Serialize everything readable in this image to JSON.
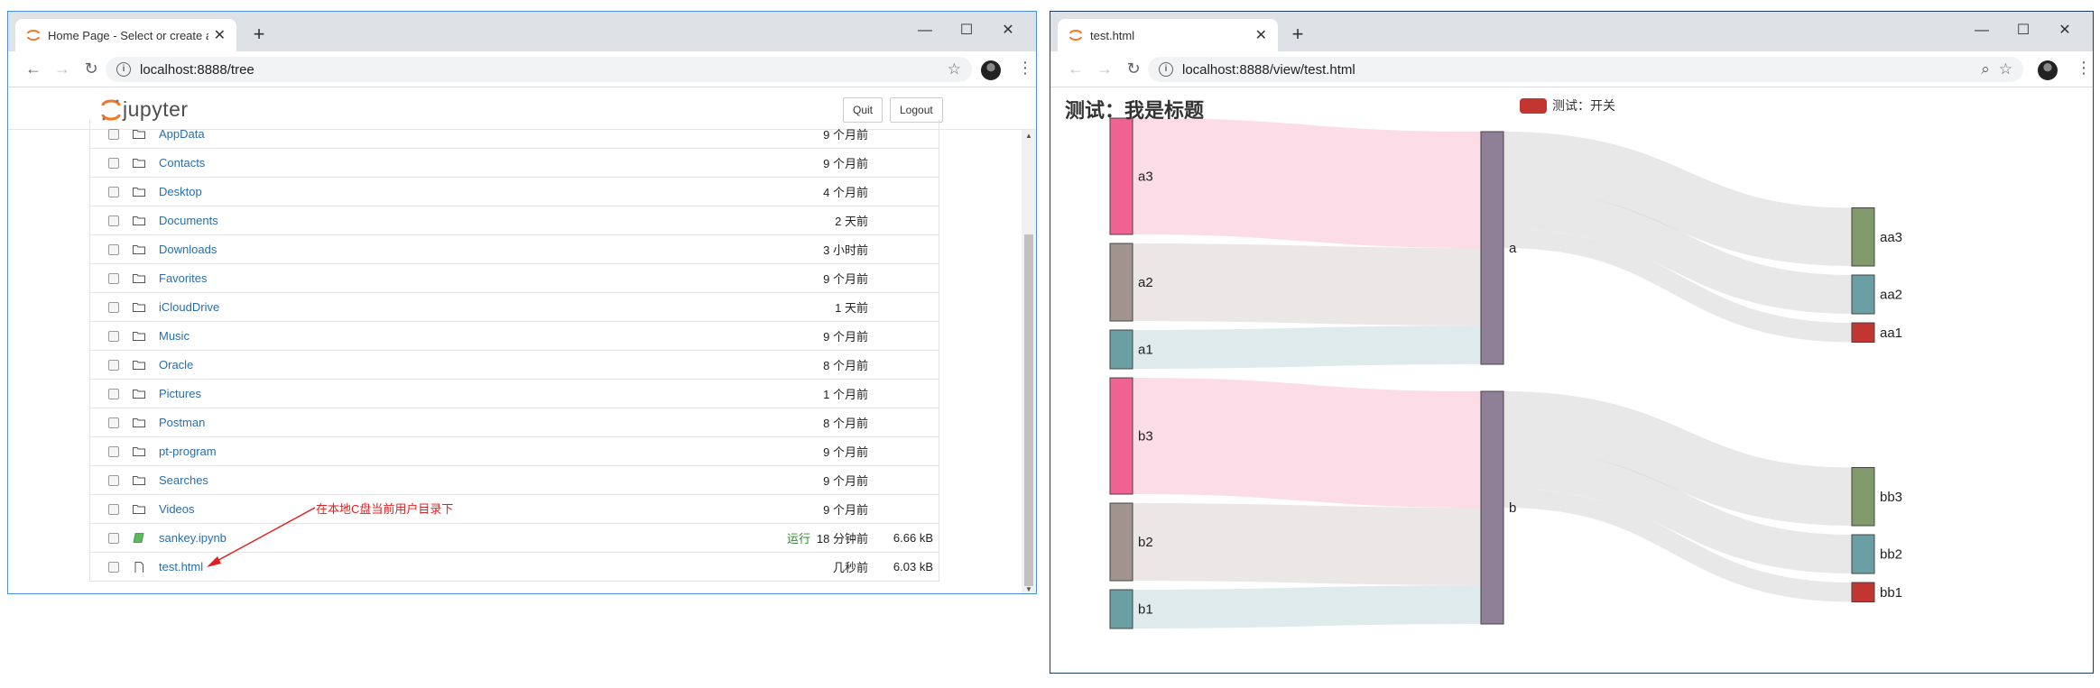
{
  "left_window": {
    "tab_title": "Home Page - Select or create a notebook",
    "url": "localhost:8888/tree",
    "logo_text": "jupyter",
    "quit_label": "Quit",
    "logout_label": "Logout",
    "annotation": "在本地C盘当前用户目录下",
    "files": [
      {
        "name": "AppData",
        "type": "folder",
        "status": "",
        "modified": "9 个月前",
        "size": ""
      },
      {
        "name": "Contacts",
        "type": "folder",
        "status": "",
        "modified": "9 个月前",
        "size": ""
      },
      {
        "name": "Desktop",
        "type": "folder",
        "status": "",
        "modified": "4 个月前",
        "size": ""
      },
      {
        "name": "Documents",
        "type": "folder",
        "status": "",
        "modified": "2 天前",
        "size": ""
      },
      {
        "name": "Downloads",
        "type": "folder",
        "status": "",
        "modified": "3 小时前",
        "size": ""
      },
      {
        "name": "Favorites",
        "type": "folder",
        "status": "",
        "modified": "9 个月前",
        "size": ""
      },
      {
        "name": "iCloudDrive",
        "type": "folder",
        "status": "",
        "modified": "1 天前",
        "size": ""
      },
      {
        "name": "Music",
        "type": "folder",
        "status": "",
        "modified": "9 个月前",
        "size": ""
      },
      {
        "name": "Oracle",
        "type": "folder",
        "status": "",
        "modified": "8 个月前",
        "size": ""
      },
      {
        "name": "Pictures",
        "type": "folder",
        "status": "",
        "modified": "1 个月前",
        "size": ""
      },
      {
        "name": "Postman",
        "type": "folder",
        "status": "",
        "modified": "8 个月前",
        "size": ""
      },
      {
        "name": "pt-program",
        "type": "folder",
        "status": "",
        "modified": "9 个月前",
        "size": ""
      },
      {
        "name": "Searches",
        "type": "folder",
        "status": "",
        "modified": "9 个月前",
        "size": ""
      },
      {
        "name": "Videos",
        "type": "folder",
        "status": "",
        "modified": "9 个月前",
        "size": ""
      },
      {
        "name": "sankey.ipynb",
        "type": "notebook",
        "status": "运行",
        "modified": "18 分钟前",
        "size": "6.66 kB"
      },
      {
        "name": "test.html",
        "type": "file",
        "status": "",
        "modified": "几秒前",
        "size": "6.03 kB"
      }
    ]
  },
  "right_window": {
    "tab_title": "test.html",
    "url": "localhost:8888/view/test.html"
  },
  "chart_data": {
    "type": "sankey",
    "title": "测试：我是标题",
    "legend": [
      {
        "name": "测试：开关",
        "color": "#c23531"
      }
    ],
    "legend_position": "top-center",
    "nodes": [
      {
        "name": "a3",
        "column": 0,
        "color": "#f06292"
      },
      {
        "name": "a2",
        "column": 0,
        "color": "#a1938e"
      },
      {
        "name": "a1",
        "column": 0,
        "color": "#6a9fa4"
      },
      {
        "name": "b3",
        "column": 0,
        "color": "#f06292"
      },
      {
        "name": "b2",
        "column": 0,
        "color": "#a1938e"
      },
      {
        "name": "b1",
        "column": 0,
        "color": "#6a9fa4"
      },
      {
        "name": "a",
        "column": 1,
        "color": "#8f8098"
      },
      {
        "name": "b",
        "column": 1,
        "color": "#8f8098"
      },
      {
        "name": "aa3",
        "column": 2,
        "color": "#819a6a"
      },
      {
        "name": "aa2",
        "column": 2,
        "color": "#6a9fa4"
      },
      {
        "name": "aa1",
        "column": 2,
        "color": "#c23531"
      },
      {
        "name": "bb3",
        "column": 2,
        "color": "#819a6a"
      },
      {
        "name": "bb2",
        "column": 2,
        "color": "#6a9fa4"
      },
      {
        "name": "bb1",
        "column": 2,
        "color": "#c23531"
      }
    ],
    "links": [
      {
        "source": "a3",
        "target": "a",
        "value": 30
      },
      {
        "source": "a2",
        "target": "a",
        "value": 20
      },
      {
        "source": "a1",
        "target": "a",
        "value": 10
      },
      {
        "source": "b3",
        "target": "b",
        "value": 30
      },
      {
        "source": "b2",
        "target": "b",
        "value": 20
      },
      {
        "source": "b1",
        "target": "b",
        "value": 10
      },
      {
        "source": "a",
        "target": "aa3",
        "value": 15
      },
      {
        "source": "a",
        "target": "aa2",
        "value": 10
      },
      {
        "source": "a",
        "target": "aa1",
        "value": 5
      },
      {
        "source": "b",
        "target": "bb3",
        "value": 15
      },
      {
        "source": "b",
        "target": "bb2",
        "value": 10
      },
      {
        "source": "b",
        "target": "bb1",
        "value": 5
      }
    ]
  }
}
